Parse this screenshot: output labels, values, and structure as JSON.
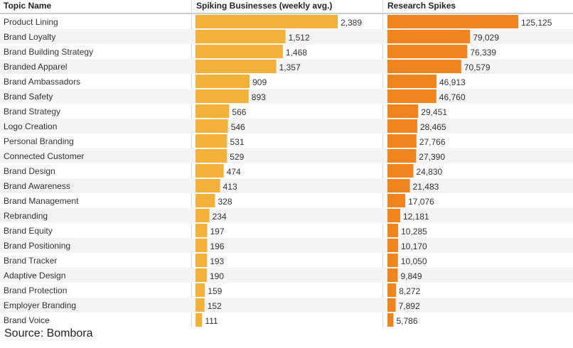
{
  "chart_data": {
    "type": "bar",
    "columns": {
      "topic": "Topic Name",
      "spiking": "Spiking Businesses (weekly avg.)",
      "research": "Research Spikes"
    },
    "categories": [
      "Product Lining",
      "Brand Loyalty",
      "Brand Building Strategy",
      "Branded Apparel",
      "Brand Ambassadors",
      "Brand Safety",
      "Brand Strategy",
      "Logo Creation",
      "Personal Branding",
      "Connected Customer",
      "Brand Design",
      "Brand Awareness",
      "Brand Management",
      "Rebranding",
      "Brand Equity",
      "Brand Positioning",
      "Brand Tracker",
      "Adaptive Design",
      "Brand Protection",
      "Employer Branding",
      "Brand Voice"
    ],
    "series": [
      {
        "name": "Spiking Businesses (weekly avg.)",
        "color": "#f4b13a",
        "values": [
          2389,
          1512,
          1468,
          1357,
          909,
          893,
          566,
          546,
          531,
          529,
          474,
          413,
          328,
          234,
          197,
          196,
          193,
          190,
          159,
          152,
          111
        ],
        "labels": [
          "2,389",
          "1,512",
          "1,468",
          "1,357",
          "909",
          "893",
          "566",
          "546",
          "531",
          "529",
          "474",
          "413",
          "328",
          "234",
          "197",
          "196",
          "193",
          "190",
          "159",
          "152",
          "111"
        ]
      },
      {
        "name": "Research Spikes",
        "color": "#f0841e",
        "values": [
          125125,
          79029,
          76339,
          70579,
          46913,
          46760,
          29451,
          28465,
          27766,
          27390,
          24830,
          21483,
          17076,
          12181,
          10285,
          10170,
          10050,
          9849,
          8272,
          7892,
          5786
        ],
        "labels": [
          "125,125",
          "79,029",
          "76,339",
          "70,579",
          "46,913",
          "46,760",
          "29,451",
          "28,465",
          "27,766",
          "27,390",
          "24,830",
          "21,483",
          "17,076",
          "12,181",
          "10,285",
          "10,170",
          "10,050",
          "9,849",
          "8,272",
          "7,892",
          "5,786"
        ]
      }
    ],
    "source": "Source: Bombora"
  }
}
